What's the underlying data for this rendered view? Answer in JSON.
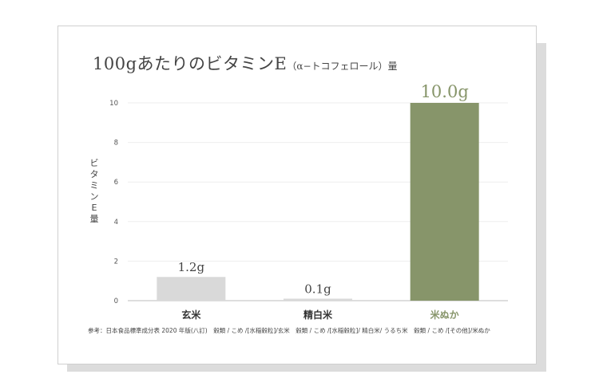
{
  "title_main": "100gあたりのビタミンE",
  "title_sub": "（α−トコフェロール）量",
  "source_note": "参考：日本食品標準成分表 2020 年版(八訂)　穀類 / こめ /[水稲穀粒]/玄米　穀類 / こめ /[水稲穀粒]/ 精白米/ うるち米　穀類 / こめ /[その他]/米ぬか",
  "colors": {
    "highlight": "#87956a",
    "muted": "#d9d9d9",
    "text": "#444444",
    "grid": "#eeeeee"
  },
  "chart_data": {
    "type": "bar",
    "title": "100gあたりのビタミンE（α−トコフェロール）量",
    "xlabel": "",
    "ylabel": "ビタミンE量",
    "categories": [
      "玄米",
      "精白米",
      "米ぬか"
    ],
    "values": [
      1.2,
      0.1,
      10.0
    ],
    "value_labels": [
      "1.2g",
      "0.1g",
      "10.0g"
    ],
    "ylim": [
      0,
      10
    ],
    "yticks": [
      0,
      2,
      4,
      6,
      8,
      10
    ],
    "grid": true,
    "legend": "none",
    "highlight_category": "米ぬか"
  }
}
